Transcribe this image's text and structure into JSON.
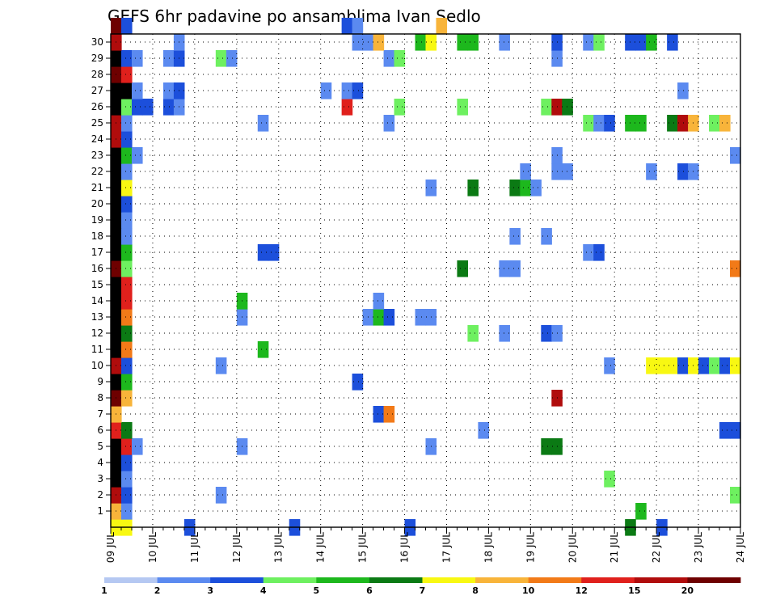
{
  "chart_data": {
    "type": "heatmap",
    "title": "GEFS 6hr padavine po ansamblima Ivan Sedlo",
    "x_tick_labels": [
      "09 JUL",
      "10 JUL",
      "11 JUL",
      "12 JUL",
      "13 JUL",
      "14 JUL",
      "15 JUL",
      "16 JUL",
      "17 JUL",
      "18 JUL",
      "19 JUL",
      "20 JUL",
      "21 JUL",
      "22 JUL",
      "23 JUL",
      "24 JUL"
    ],
    "y_tick_labels": [
      "1",
      "2",
      "3",
      "4",
      "5",
      "6",
      "7",
      "8",
      "9",
      "10",
      "11",
      "12",
      "13",
      "14",
      "15",
      "16",
      "17",
      "18",
      "19",
      "20",
      "21",
      "22",
      "23",
      "24",
      "25",
      "26",
      "27",
      "28",
      "29",
      "30"
    ],
    "xlim": [
      0,
      60
    ],
    "ylim": [
      0,
      30
    ],
    "grid": true,
    "legend": {
      "placement": "bottom",
      "labels": [
        "1",
        "2",
        "3",
        "4",
        "5",
        "6",
        "7",
        "8",
        "10",
        "12",
        "15",
        "20"
      ],
      "colors": [
        "#b5c8f2",
        "#5b8af0",
        "#1c4fdb",
        "#6ef060",
        "#1db81d",
        "#0b7a14",
        "#f8f812",
        "#f8b43a",
        "#f27a18",
        "#e0201c",
        "#b00c0c",
        "#6e0000"
      ]
    },
    "values_note": "",
    "cells": [
      [
        0,
        0,
        6
      ],
      [
        1,
        0,
        6
      ],
      [
        7,
        0,
        2
      ],
      [
        17,
        0,
        2
      ],
      [
        28,
        0,
        2
      ],
      [
        49,
        0,
        5
      ],
      [
        52,
        0,
        2
      ],
      [
        0,
        1,
        7
      ],
      [
        1,
        1,
        1
      ],
      [
        50,
        1,
        4
      ],
      [
        0,
        2,
        10
      ],
      [
        1,
        2,
        2
      ],
      [
        10,
        2,
        1
      ],
      [
        59,
        2,
        3
      ],
      [
        0,
        3,
        12
      ],
      [
        1,
        3,
        1
      ],
      [
        47,
        3,
        3
      ],
      [
        0,
        4,
        12
      ],
      [
        1,
        4,
        2
      ],
      [
        0,
        5,
        13
      ],
      [
        1,
        5,
        9
      ],
      [
        2,
        5,
        1
      ],
      [
        12,
        5,
        1
      ],
      [
        30,
        5,
        1
      ],
      [
        41,
        5,
        5
      ],
      [
        42,
        5,
        5
      ],
      [
        0,
        6,
        9
      ],
      [
        1,
        6,
        5
      ],
      [
        35,
        6,
        1
      ],
      [
        58,
        6,
        2
      ],
      [
        59,
        6,
        2
      ],
      [
        0,
        7,
        7
      ],
      [
        25,
        7,
        2
      ],
      [
        26,
        7,
        8
      ],
      [
        0,
        8,
        11
      ],
      [
        1,
        8,
        7
      ],
      [
        42,
        8,
        10
      ],
      [
        0,
        9,
        13
      ],
      [
        1,
        9,
        4
      ],
      [
        23,
        9,
        2
      ],
      [
        0,
        10,
        10
      ],
      [
        1,
        10,
        2
      ],
      [
        10,
        10,
        1
      ],
      [
        47,
        10,
        1
      ],
      [
        51,
        10,
        6
      ],
      [
        52,
        10,
        6
      ],
      [
        53,
        10,
        6
      ],
      [
        54,
        10,
        2
      ],
      [
        55,
        10,
        6
      ],
      [
        56,
        10,
        2
      ],
      [
        57,
        10,
        3
      ],
      [
        58,
        10,
        2
      ],
      [
        59,
        10,
        6
      ],
      [
        0,
        11,
        13
      ],
      [
        1,
        11,
        8
      ],
      [
        14,
        11,
        4
      ],
      [
        0,
        12,
        13
      ],
      [
        1,
        12,
        5
      ],
      [
        34,
        12,
        3
      ],
      [
        37,
        12,
        1
      ],
      [
        41,
        12,
        2
      ],
      [
        42,
        12,
        1
      ],
      [
        0,
        13,
        12
      ],
      [
        1,
        13,
        8
      ],
      [
        12,
        13,
        1
      ],
      [
        24,
        13,
        1
      ],
      [
        25,
        13,
        4
      ],
      [
        26,
        13,
        2
      ],
      [
        29,
        13,
        1
      ],
      [
        30,
        13,
        1
      ],
      [
        0,
        14,
        12
      ],
      [
        1,
        14,
        9
      ],
      [
        12,
        14,
        4
      ],
      [
        25,
        14,
        1
      ],
      [
        0,
        15,
        13
      ],
      [
        1,
        15,
        9
      ],
      [
        0,
        16,
        11
      ],
      [
        1,
        16,
        3
      ],
      [
        33,
        16,
        5
      ],
      [
        37,
        16,
        1
      ],
      [
        38,
        16,
        1
      ],
      [
        59,
        16,
        8
      ],
      [
        0,
        17,
        12
      ],
      [
        1,
        17,
        4
      ],
      [
        14,
        17,
        2
      ],
      [
        15,
        17,
        2
      ],
      [
        45,
        17,
        1
      ],
      [
        46,
        17,
        2
      ],
      [
        0,
        18,
        12
      ],
      [
        1,
        18,
        1
      ],
      [
        38,
        18,
        1
      ],
      [
        41,
        18,
        1
      ],
      [
        0,
        19,
        12
      ],
      [
        1,
        19,
        1
      ],
      [
        0,
        20,
        13
      ],
      [
        1,
        20,
        2
      ],
      [
        0,
        21,
        12
      ],
      [
        1,
        21,
        6
      ],
      [
        30,
        21,
        1
      ],
      [
        34,
        21,
        5
      ],
      [
        38,
        21,
        5
      ],
      [
        39,
        21,
        4
      ],
      [
        40,
        21,
        1
      ],
      [
        0,
        22,
        12
      ],
      [
        1,
        22,
        1
      ],
      [
        39,
        22,
        1
      ],
      [
        42,
        22,
        1
      ],
      [
        43,
        22,
        1
      ],
      [
        51,
        22,
        1
      ],
      [
        54,
        22,
        2
      ],
      [
        55,
        22,
        1
      ],
      [
        0,
        23,
        13
      ],
      [
        1,
        23,
        4
      ],
      [
        2,
        23,
        1
      ],
      [
        42,
        23,
        1
      ],
      [
        59,
        23,
        1
      ],
      [
        0,
        24,
        10
      ],
      [
        1,
        24,
        2
      ],
      [
        0,
        25,
        10
      ],
      [
        1,
        25,
        1
      ],
      [
        14,
        25,
        1
      ],
      [
        26,
        25,
        1
      ],
      [
        45,
        25,
        3
      ],
      [
        46,
        25,
        1
      ],
      [
        47,
        25,
        2
      ],
      [
        49,
        25,
        4
      ],
      [
        50,
        25,
        4
      ],
      [
        53,
        25,
        5
      ],
      [
        54,
        25,
        10
      ],
      [
        55,
        25,
        7
      ],
      [
        57,
        25,
        3
      ],
      [
        58,
        25,
        7
      ],
      [
        0,
        26,
        13
      ],
      [
        1,
        26,
        3
      ],
      [
        2,
        26,
        2
      ],
      [
        3,
        26,
        2
      ],
      [
        5,
        26,
        2
      ],
      [
        6,
        26,
        1
      ],
      [
        22,
        26,
        9
      ],
      [
        27,
        26,
        3
      ],
      [
        33,
        26,
        3
      ],
      [
        41,
        26,
        3
      ],
      [
        42,
        26,
        10
      ],
      [
        43,
        26,
        5
      ],
      [
        0,
        27,
        13
      ],
      [
        1,
        27,
        12
      ],
      [
        2,
        27,
        1
      ],
      [
        5,
        27,
        1
      ],
      [
        6,
        27,
        2
      ],
      [
        20,
        27,
        1
      ],
      [
        22,
        27,
        1
      ],
      [
        23,
        27,
        2
      ],
      [
        54,
        27,
        1
      ],
      [
        0,
        28,
        11
      ],
      [
        1,
        28,
        9
      ],
      [
        0,
        29,
        13
      ],
      [
        1,
        29,
        2
      ],
      [
        2,
        29,
        1
      ],
      [
        5,
        29,
        1
      ],
      [
        6,
        29,
        2
      ],
      [
        10,
        29,
        3
      ],
      [
        11,
        29,
        1
      ],
      [
        26,
        29,
        1
      ],
      [
        27,
        29,
        3
      ],
      [
        42,
        29,
        1
      ],
      [
        0,
        30,
        10
      ],
      [
        6,
        30,
        1
      ],
      [
        23,
        30,
        1
      ],
      [
        24,
        30,
        1
      ],
      [
        25,
        30,
        7
      ],
      [
        29,
        30,
        4
      ],
      [
        30,
        30,
        6
      ],
      [
        33,
        30,
        4
      ],
      [
        34,
        30,
        4
      ],
      [
        37,
        30,
        1
      ],
      [
        42,
        30,
        2
      ],
      [
        45,
        30,
        1
      ],
      [
        46,
        30,
        3
      ],
      [
        49,
        30,
        2
      ],
      [
        50,
        30,
        2
      ],
      [
        51,
        30,
        4
      ],
      [
        53,
        30,
        2
      ],
      [
        0,
        31,
        11
      ],
      [
        1,
        31,
        2
      ],
      [
        22,
        31,
        2
      ],
      [
        23,
        31,
        1
      ],
      [
        31,
        31,
        7
      ]
    ]
  }
}
